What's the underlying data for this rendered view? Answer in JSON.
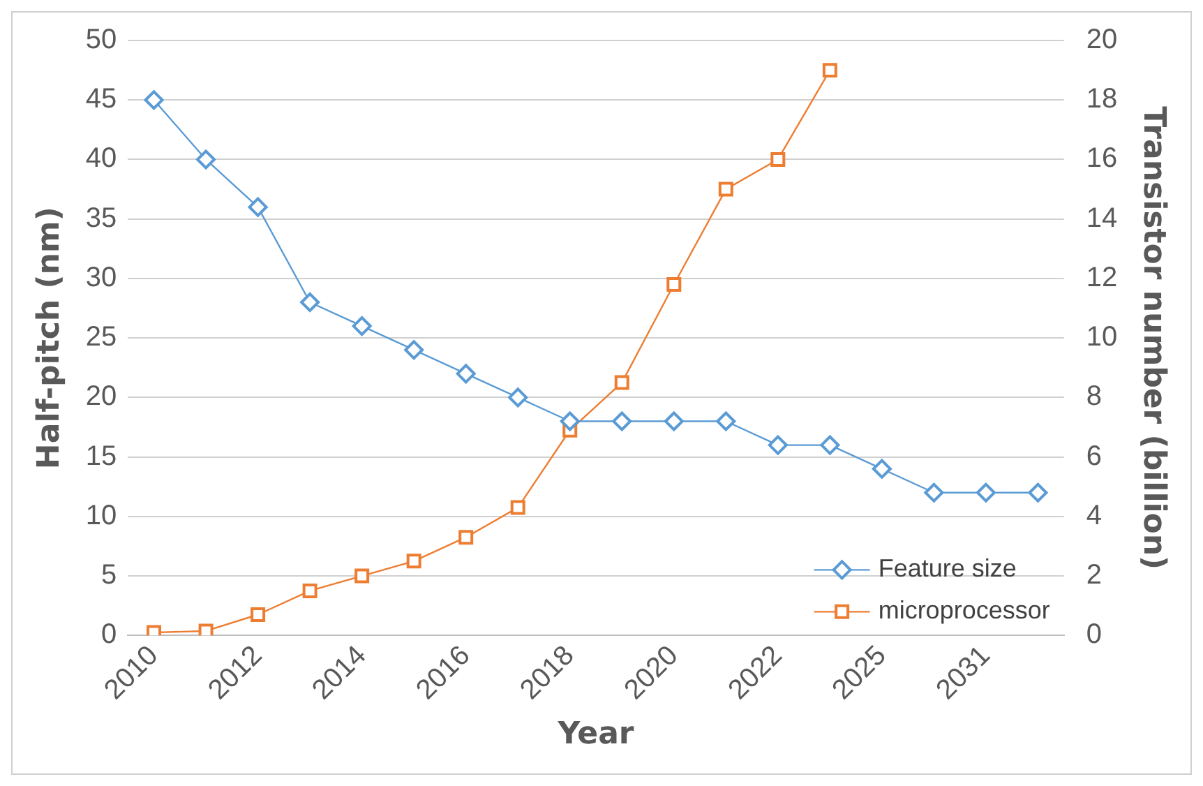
{
  "chart_data": {
    "type": "line",
    "categories": [
      "2010",
      null,
      "2012",
      null,
      "2014",
      null,
      "2016",
      null,
      "2018",
      null,
      "2020",
      null,
      "2022",
      null,
      "2025",
      null,
      "2031",
      null
    ],
    "series": [
      {
        "name": "Feature size",
        "color": "#5b9bd5",
        "marker": "diamond",
        "values": [
          45,
          40,
          36,
          28,
          26,
          24,
          22,
          20,
          18,
          18,
          18,
          18,
          16,
          16,
          14,
          12,
          12,
          12
        ]
      },
      {
        "name": "microprocessor",
        "color": "#ed7d31",
        "marker": "square",
        "axis": "y2",
        "values": [
          0.1,
          0.15,
          0.7,
          1.5,
          2,
          2.5,
          3.3,
          4.3,
          6.9,
          8.5,
          11.8,
          15,
          16,
          19,
          null,
          null,
          null,
          null
        ]
      }
    ],
    "xlabel": "Year",
    "ylabel": "Half-pitch (nm)",
    "y2label": "Transistor number (billion)",
    "ylim": [
      0,
      50
    ],
    "yticks": [
      0,
      5,
      10,
      15,
      20,
      25,
      30,
      35,
      40,
      45,
      50
    ],
    "y2lim": [
      0,
      20
    ],
    "y2ticks": [
      0,
      2,
      4,
      6,
      8,
      10,
      12,
      14,
      16,
      18,
      20
    ],
    "grid": "y",
    "legend": "bottom right"
  }
}
